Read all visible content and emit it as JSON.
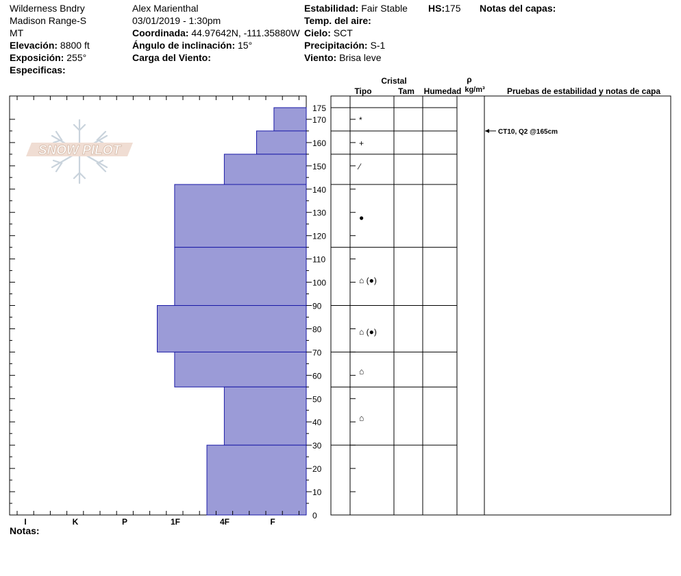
{
  "header": {
    "location_line1": "Wilderness Bndry",
    "location_line2": "Madison Range-S",
    "location_line3": "MT",
    "elevation_label": "Elevación:",
    "elevation_value": "8800 ft",
    "aspect_label": "Exposición:",
    "aspect_value": "255°",
    "specifics_label": "Especificas:",
    "observer": "Alex Marienthal",
    "datetime": "03/01/2019 - 1:30pm",
    "coord_label": "Coordinada:",
    "coord_value": "44.97642N, -111.35880W",
    "slope_label": "Ángulo de inclinación:",
    "slope_value": "15°",
    "wind_load_label": "Carga del Viento:",
    "stability_label": "Estabilidad:",
    "stability_value": "Fair Stable",
    "hs_label": "HS:",
    "hs_value": "175",
    "air_temp_label": "Temp. del aire:",
    "sky_label": "Cielo:",
    "sky_value": "SCT",
    "precip_label": "Precipitación:",
    "precip_value": "S-1",
    "wind_label": "Viento:",
    "wind_value": "Brisa leve",
    "layer_notes_label": "Notas del capas:"
  },
  "logo_text": "SNOW PILOT",
  "table_headers": {
    "crystal": "Cristal",
    "type": "Tipo",
    "size": "Tam",
    "moisture": "Humedad",
    "rho": "ρ",
    "density_unit": "kg/m³",
    "tests": "Pruebas de estabilidad y notas de capa"
  },
  "notes_label": "Notas:",
  "colors": {
    "bar_fill": "#9b9bd7",
    "bar_stroke": "#1a1aa6",
    "line": "#000000"
  },
  "chart_data": {
    "type": "bar",
    "orientation": "horizontal",
    "description_axis_y": "height (cm)",
    "ylim": [
      0,
      175
    ],
    "y_ticks": [
      0,
      10,
      20,
      30,
      40,
      50,
      60,
      70,
      80,
      90,
      100,
      110,
      120,
      130,
      140,
      150,
      160,
      170,
      175
    ],
    "hardness_labels": [
      "I",
      "K",
      "P",
      "1F",
      "4F",
      "F"
    ],
    "layers": [
      {
        "bottom": 165,
        "top": 175,
        "hardness_index": 0.65
      },
      {
        "bottom": 155,
        "top": 165,
        "hardness_index": 1.0
      },
      {
        "bottom": 142,
        "top": 155,
        "hardness_index": 1.65
      },
      {
        "bottom": 115,
        "top": 142,
        "hardness_index": 2.65
      },
      {
        "bottom": 90,
        "top": 115,
        "hardness_index": 2.65
      },
      {
        "bottom": 70,
        "top": 90,
        "hardness_index": 3.0
      },
      {
        "bottom": 55,
        "top": 70,
        "hardness_index": 2.65
      },
      {
        "bottom": 30,
        "top": 55,
        "hardness_index": 1.65
      },
      {
        "bottom": 0,
        "top": 30,
        "hardness_index": 2.0
      }
    ],
    "crystals": [
      {
        "height": 170,
        "symbol": "*"
      },
      {
        "height": 160,
        "symbol": "+"
      },
      {
        "height": 150,
        "symbol": "⁄"
      },
      {
        "height": 128,
        "symbol": "●"
      },
      {
        "height": 101,
        "symbol": "⌂ (●)"
      },
      {
        "height": 79,
        "symbol": "⌂ (●)"
      },
      {
        "height": 62,
        "symbol": "⌂"
      },
      {
        "height": 42,
        "symbol": "⌂"
      }
    ],
    "stability_tests": [
      {
        "height": 165,
        "text": "CT10, Q2 @165cm"
      }
    ]
  }
}
